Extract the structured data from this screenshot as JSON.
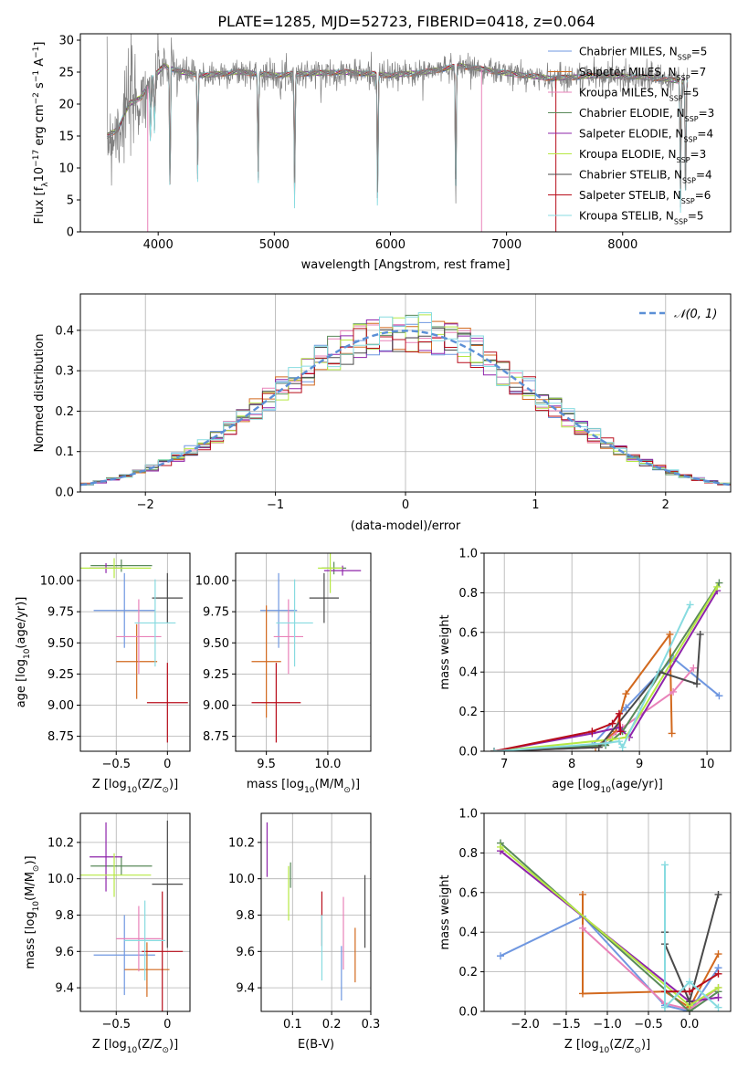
{
  "figure": {
    "title": "PLATE=1285, MJD=52723, FIBERID=0418, z=0.064",
    "palette": [
      "#6f97e0",
      "#7d7d7d",
      "#e0782a",
      "#5a9a6a",
      "#9b30b8",
      "#ccec66",
      "#454545",
      "#b80d1b",
      "#8ee0e6"
    ],
    "model_colors": [
      "#6f97e0",
      "#d2691e",
      "#e982b9",
      "#5a8a5a",
      "#8e24aa",
      "#b6e843",
      "#4a4a4a",
      "#b80d1b",
      "#87dbe0"
    ]
  },
  "chart_data": [
    {
      "id": "spectrum",
      "type": "line",
      "xlabel": "wavelength [Angstrom, rest frame]",
      "ylabel_prefix": "Flux [f",
      "ylabel_sub": "λ",
      "ylabel_main": "10",
      "ylabel_exp": "−17",
      "ylabel_rest": " erg cm",
      "ylabel_exp2": "−2",
      "ylabel_rest2": " s",
      "ylabel_exp3": "−1",
      "ylabel_rest3": " A",
      "ylabel_exp4": "−1",
      "ylabel_end": "]",
      "xlim": [
        3330,
        8930
      ],
      "ylim": [
        0,
        31
      ],
      "xticks": [
        4000,
        5000,
        6000,
        7000,
        8000
      ],
      "yticks": [
        0,
        5,
        10,
        15,
        20,
        25,
        30
      ],
      "legend_position": "top-right",
      "legend": [
        {
          "label": "Chabrier MILES, N",
          "sub": "SSP",
          "value": "=5"
        },
        {
          "label": "Salpeter MILES, N",
          "sub": "SSP",
          "value": "=7"
        },
        {
          "label": "Kroupa MILES, N",
          "sub": "SSP",
          "value": "=5"
        },
        {
          "label": "Chabrier ELODIE, N",
          "sub": "SSP",
          "value": "=3"
        },
        {
          "label": "Salpeter ELODIE, N",
          "sub": "SSP",
          "value": "=4"
        },
        {
          "label": "Kroupa ELODIE, N",
          "sub": "SSP",
          "value": "=3"
        },
        {
          "label": "Chabrier STELIB, N",
          "sub": "SSP",
          "value": "=4"
        },
        {
          "label": "Salpeter STELIB, N",
          "sub": "SSP",
          "value": "=6"
        },
        {
          "label": "Kroupa STELIB, N",
          "sub": "SSP",
          "value": "=5"
        }
      ],
      "continuum": [
        [
          3560,
          15
        ],
        [
          3650,
          16
        ],
        [
          3750,
          20
        ],
        [
          3850,
          21
        ],
        [
          3950,
          24
        ],
        [
          4050,
          26
        ],
        [
          4200,
          25
        ],
        [
          4400,
          24.5
        ],
        [
          4700,
          25
        ],
        [
          5000,
          24.5
        ],
        [
          5300,
          24.8
        ],
        [
          5600,
          25
        ],
        [
          6000,
          24.5
        ],
        [
          6300,
          25
        ],
        [
          6600,
          26
        ],
        [
          7000,
          24.8
        ],
        [
          7400,
          24
        ],
        [
          7800,
          24.5
        ],
        [
          8200,
          24.2
        ],
        [
          8550,
          23.5
        ]
      ],
      "dips": [
        [
          3934,
          9
        ],
        [
          3969,
          8
        ],
        [
          4102,
          17
        ],
        [
          4340,
          14
        ],
        [
          4861,
          15
        ],
        [
          5175,
          18
        ],
        [
          5890,
          19
        ],
        [
          6563,
          20
        ],
        [
          8498,
          17
        ],
        [
          8542,
          16
        ],
        [
          8662,
          17
        ]
      ]
    },
    {
      "id": "residuals",
      "type": "histogram",
      "xlabel": "(data-model)/error",
      "ylabel": "Normed distribution",
      "xlim": [
        -2.5,
        2.5
      ],
      "ylim": [
        0,
        0.49
      ],
      "xticks": [
        -2,
        -1,
        0,
        1,
        2
      ],
      "yticks": [
        0.0,
        0.1,
        0.2,
        0.3,
        0.4
      ],
      "legend_label": "𝒩(0, 1)",
      "legend_position": "top-right",
      "bin_width": 0.1
    },
    {
      "id": "age_vs_Z",
      "type": "scatter",
      "xlabel": "Z [log",
      "xlabel_sub": "10",
      "xlabel_rest": "(Z/Z",
      "xlabel_sub2": "⊙",
      "xlabel_end": ")]",
      "ylabel": "age  [log",
      "ylabel_sub": "10",
      "ylabel_rest": "(age/yr)]",
      "xlim": [
        -0.85,
        0.22
      ],
      "ylim": [
        8.63,
        10.22
      ],
      "xticks": [
        -0.5,
        0.0
      ],
      "yticks": [
        8.75,
        9.0,
        9.25,
        9.5,
        9.75,
        10.0
      ],
      "points": [
        {
          "x": -0.42,
          "xerr": 0.3,
          "y": 9.76,
          "yerr": 0.3
        },
        {
          "x": -0.3,
          "xerr": 0.2,
          "y": 9.35,
          "yerr": 0.3
        },
        {
          "x": -0.28,
          "xerr": 0.22,
          "y": 9.55,
          "yerr": 0.3
        },
        {
          "x": -0.45,
          "xerr": 0.3,
          "y": 10.12,
          "yerr": 0.05
        },
        {
          "x": -0.6,
          "xerr": 0.16,
          "y": 10.1,
          "yerr": 0.04
        },
        {
          "x": -0.52,
          "xerr": 0.36,
          "y": 10.1,
          "yerr": 0.08
        },
        {
          "x": 0.0,
          "xerr": 0.15,
          "y": 9.86,
          "yerr": 0.2
        },
        {
          "x": 0.0,
          "xerr": 0.2,
          "y": 9.02,
          "yerr": 0.32
        },
        {
          "x": -0.12,
          "xerr": 0.2,
          "y": 9.66,
          "yerr": 0.35
        }
      ]
    },
    {
      "id": "age_vs_mass",
      "type": "scatter",
      "xlabel": "mass [log",
      "xlabel_sub": "10",
      "xlabel_rest": "(M/M",
      "xlabel_sub2": "⊙",
      "xlabel_end": ")]",
      "ylabel": "",
      "xlim": [
        9.25,
        10.35
      ],
      "ylim": [
        8.63,
        10.22
      ],
      "xticks": [
        9.5,
        10.0
      ],
      "yticks": [
        8.75,
        9.0,
        9.25,
        9.5,
        9.75,
        10.0
      ],
      "points": [
        {
          "x": 9.6,
          "xerr": 0.15,
          "y": 9.76,
          "yerr": 0.3
        },
        {
          "x": 9.5,
          "xerr": 0.12,
          "y": 9.35,
          "yerr": 0.45
        },
        {
          "x": 9.68,
          "xerr": 0.12,
          "y": 9.55,
          "yerr": 0.3
        },
        {
          "x": 10.05,
          "xerr": 0.1,
          "y": 10.1,
          "yerr": 0.05
        },
        {
          "x": 10.12,
          "xerr": 0.15,
          "y": 10.08,
          "yerr": 0.04
        },
        {
          "x": 10.02,
          "xerr": 0.1,
          "y": 10.1,
          "yerr": 0.2
        },
        {
          "x": 9.97,
          "xerr": 0.12,
          "y": 9.86,
          "yerr": 0.2
        },
        {
          "x": 9.58,
          "xerr": 0.2,
          "y": 9.02,
          "yerr": 0.32
        },
        {
          "x": 9.73,
          "xerr": 0.15,
          "y": 9.66,
          "yerr": 0.35
        }
      ]
    },
    {
      "id": "mw_vs_age",
      "type": "line",
      "xlabel": "age  [log",
      "xlabel_sub": "10",
      "xlabel_rest": "(age/yr)]",
      "ylabel": "mass weight",
      "xlim": [
        6.7,
        10.35
      ],
      "ylim": [
        0,
        1
      ],
      "xticks": [
        7,
        8,
        9,
        10
      ],
      "yticks": [
        0.0,
        0.2,
        0.4,
        0.6,
        0.8,
        1.0
      ],
      "series": [
        {
          "x": [
            6.85,
            8.3,
            8.8,
            9.5,
            10.18
          ],
          "y": [
            0,
            0.03,
            0.22,
            0.47,
            0.28
          ]
        },
        {
          "x": [
            6.85,
            8.35,
            8.65,
            8.8,
            9.45,
            9.48
          ],
          "y": [
            0,
            0.02,
            0.1,
            0.29,
            0.59,
            0.09
          ]
        },
        {
          "x": [
            6.85,
            8.4,
            8.75,
            9.5,
            9.8
          ],
          "y": [
            0,
            0.02,
            0.12,
            0.3,
            0.42
          ]
        },
        {
          "x": [
            6.85,
            8.5,
            8.75,
            10.18
          ],
          "y": [
            0,
            0.03,
            0.1,
            0.85
          ]
        },
        {
          "x": [
            6.85,
            8.3,
            8.7,
            8.85,
            10.15
          ],
          "y": [
            0,
            0.09,
            0.12,
            0.07,
            0.81
          ]
        },
        {
          "x": [
            6.85,
            8.6,
            8.8,
            10.15
          ],
          "y": [
            0,
            0.06,
            0.07,
            0.83
          ]
        },
        {
          "x": [
            6.85,
            8.4,
            9.3,
            9.85,
            9.9
          ],
          "y": [
            0,
            0.02,
            0.4,
            0.34,
            0.59
          ]
        },
        {
          "x": [
            6.85,
            8.3,
            8.6,
            8.7,
            8.72
          ],
          "y": [
            0,
            0.1,
            0.14,
            0.19,
            0.1
          ]
        },
        {
          "x": [
            6.85,
            8.5,
            8.7,
            8.75,
            9.75
          ],
          "y": [
            0,
            0.04,
            0.05,
            0.02,
            0.74
          ]
        }
      ]
    },
    {
      "id": "mass_vs_Z",
      "type": "scatter",
      "xlabel": "Z [log",
      "xlabel_sub": "10",
      "xlabel_rest": "(Z/Z",
      "xlabel_sub2": "⊙",
      "xlabel_end": ")]",
      "ylabel": "mass [log",
      "ylabel_sub": "10",
      "ylabel_rest": "(M/M",
      "ylabel_sub2": "⊙",
      "ylabel_end": ")]",
      "xlim": [
        -0.85,
        0.22
      ],
      "ylim": [
        9.27,
        10.36
      ],
      "xticks": [
        -0.5,
        0.0
      ],
      "yticks": [
        9.4,
        9.6,
        9.8,
        10.0,
        10.2
      ],
      "points": [
        {
          "x": -0.42,
          "xerr": 0.3,
          "y": 9.58,
          "yerr": 0.22
        },
        {
          "x": -0.2,
          "xerr": 0.22,
          "y": 9.5,
          "yerr": 0.15
        },
        {
          "x": -0.28,
          "xerr": 0.22,
          "y": 9.67,
          "yerr": 0.18
        },
        {
          "x": -0.45,
          "xerr": 0.3,
          "y": 10.07,
          "yerr": 0.05
        },
        {
          "x": -0.6,
          "xerr": 0.16,
          "y": 10.12,
          "yerr": 0.19
        },
        {
          "x": -0.52,
          "xerr": 0.36,
          "y": 10.02,
          "yerr": 0.12
        },
        {
          "x": 0.0,
          "xerr": 0.15,
          "y": 9.97,
          "yerr": 0.35
        },
        {
          "x": -0.05,
          "xerr": 0.2,
          "y": 9.6,
          "yerr": 0.33
        },
        {
          "x": -0.22,
          "xerr": 0.2,
          "y": 9.66,
          "yerr": 0.22
        }
      ]
    },
    {
      "id": "mass_vs_ebv",
      "type": "scatter",
      "xlabel": "E(B-V)",
      "ylabel": "",
      "xlim": [
        0.02,
        0.3
      ],
      "ylim": [
        9.27,
        10.36
      ],
      "xticks": [
        0.1,
        0.2,
        0.3
      ],
      "yticks": [
        9.4,
        9.6,
        9.8,
        10.0,
        10.2
      ],
      "points": [
        {
          "x": 0.225,
          "y": 9.48,
          "yerr": 0.15
        },
        {
          "x": 0.26,
          "y": 9.58,
          "yerr": 0.15
        },
        {
          "x": 0.23,
          "y": 9.7,
          "yerr": 0.2
        },
        {
          "x": 0.095,
          "y": 10.02,
          "yerr": 0.07
        },
        {
          "x": 0.035,
          "y": 10.16,
          "yerr": 0.15
        },
        {
          "x": 0.09,
          "y": 9.92,
          "yerr": 0.15
        },
        {
          "x": 0.285,
          "y": 9.82,
          "yerr": 0.2
        },
        {
          "x": 0.175,
          "y": 9.78,
          "yerr": 0.15
        },
        {
          "x": 0.175,
          "y": 9.62,
          "yerr": 0.18
        }
      ]
    },
    {
      "id": "mw_vs_Z",
      "type": "line",
      "xlabel": "Z [log",
      "xlabel_sub": "10",
      "xlabel_rest": "(Z/Z",
      "xlabel_sub2": "⊙",
      "xlabel_end": ")]",
      "ylabel": "mass weight",
      "xlim": [
        -2.5,
        0.5
      ],
      "ylim": [
        0,
        1
      ],
      "xticks": [
        -2.0,
        -1.5,
        -1.0,
        -0.5,
        0.0
      ],
      "yticks": [
        0.0,
        0.2,
        0.4,
        0.6,
        0.8,
        1.0
      ],
      "series": [
        {
          "x": [
            -2.3,
            -1.3,
            -0.3,
            0.0,
            0.35
          ],
          "y": [
            0.28,
            0.48,
            0.03,
            0.0,
            0.22
          ]
        },
        {
          "x": [
            -1.3,
            -1.3,
            -0.3,
            0.0,
            0.35
          ],
          "y": [
            0.59,
            0.09,
            0.1,
            0.02,
            0.29
          ]
        },
        {
          "x": [
            -1.3,
            -0.3,
            0.0,
            0.35
          ],
          "y": [
            0.42,
            0.04,
            0.01,
            0.12
          ]
        },
        {
          "x": [
            -2.3,
            0.0,
            0.35
          ],
          "y": [
            0.85,
            0.0,
            0.1
          ]
        },
        {
          "x": [
            -2.3,
            0.0,
            0.35
          ],
          "y": [
            0.81,
            0.05,
            0.07
          ]
        },
        {
          "x": [
            -2.3,
            0.0,
            0.35
          ],
          "y": [
            0.83,
            0.03,
            0.12
          ]
        },
        {
          "x": [
            -0.3,
            -0.3,
            0.0,
            0.35
          ],
          "y": [
            0.4,
            0.34,
            0.05,
            0.59
          ]
        },
        {
          "x": [
            -0.3,
            0.0,
            0.35
          ],
          "y": [
            0.1,
            0.1,
            0.19
          ]
        },
        {
          "x": [
            -0.3,
            -0.3,
            0.0,
            0.35
          ],
          "y": [
            0.74,
            0.02,
            0.15,
            0.02
          ]
        }
      ]
    }
  ]
}
